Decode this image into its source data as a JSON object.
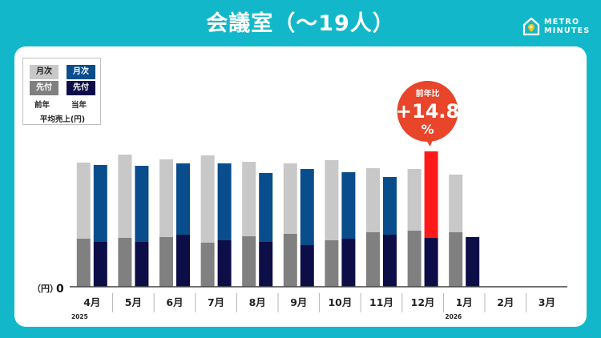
{
  "header": {
    "title": "会議室（〜19人）",
    "logo_line1": "METRO",
    "logo_line2": "MINUTES"
  },
  "legend": {
    "prev_monthly": "月次",
    "prev_advance": "先付",
    "curr_monthly": "月次",
    "curr_advance": "先付",
    "prev_caption": "前年",
    "curr_caption": "当年",
    "subtitle": "平均売上(円)"
  },
  "callout": {
    "label": "前年比",
    "value": "+14.8",
    "unit": "%"
  },
  "colors": {
    "background": "#12b8c9",
    "prev_monthly": "#c8c8c8",
    "prev_advance": "#808080",
    "curr_monthly": "#0a4d8c",
    "curr_advance": "#0d0d47",
    "highlight": "#ff1a1a",
    "callout": "#e8452a"
  },
  "chart_data": {
    "type": "bar",
    "stacked": true,
    "ylabel": "（円）",
    "y_tick_label": "0",
    "categories": [
      "4月",
      "5月",
      "6月",
      "7月",
      "8月",
      "9月",
      "10月",
      "11月",
      "12月",
      "1月",
      "2月",
      "3月"
    ],
    "year_labels": [
      {
        "category_index": 0,
        "text": "2025"
      },
      {
        "category_index": 9,
        "text": "2026"
      }
    ],
    "highlight_category_index": 8,
    "series": [
      {
        "name": "前年 先付",
        "group": "prev",
        "values": [
          60,
          61,
          62,
          55,
          63,
          66,
          58,
          68,
          70,
          68,
          0,
          0
        ]
      },
      {
        "name": "前年 月次",
        "group": "prev",
        "values": [
          95,
          104,
          97,
          109,
          93,
          88,
          100,
          80,
          77,
          72,
          0,
          0
        ]
      },
      {
        "name": "当年 先付",
        "group": "curr",
        "values": [
          56,
          56,
          65,
          58,
          56,
          52,
          60,
          65,
          61,
          62,
          0,
          0
        ]
      },
      {
        "name": "当年 月次",
        "group": "curr",
        "values": [
          96,
          95,
          89,
          96,
          86,
          95,
          83,
          72,
          108,
          0,
          0,
          0
        ]
      }
    ]
  }
}
